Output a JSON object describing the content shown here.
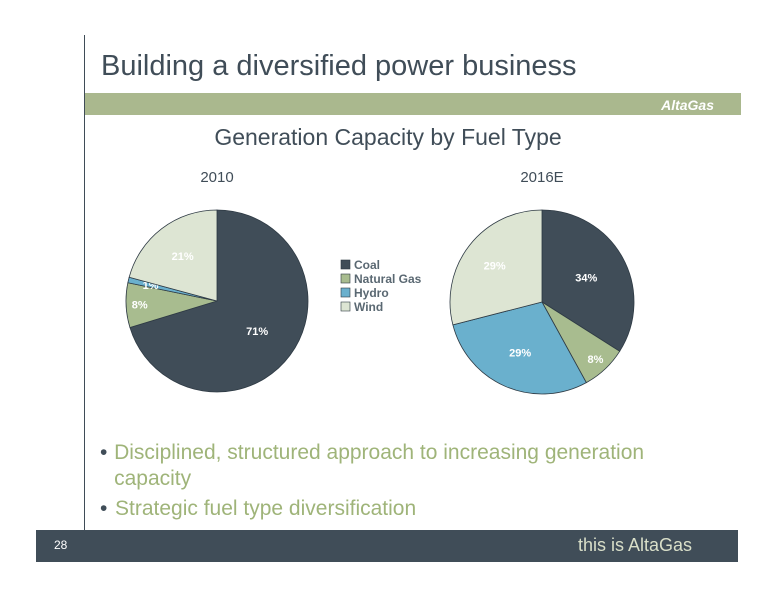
{
  "slide": {
    "title": "Building a diversified power business",
    "brand": "AltaGas",
    "page_number": "28",
    "tagline": "this is AltaGas"
  },
  "bullets": [
    "Disciplined, structured approach to increasing generation capacity",
    "Strategic fuel type diversification"
  ],
  "chart_data": {
    "type": "pie",
    "title": "Generation Capacity by Fuel Type",
    "legend": [
      "Coal",
      "Natural Gas",
      "Hydro",
      "Wind"
    ],
    "legend_placement": "center, between pies",
    "colors": {
      "Coal": "#404d58",
      "Natural Gas": "#a8bc8f",
      "Hydro": "#6ab0cd",
      "Wind": "#dde5d3"
    },
    "pies": [
      {
        "title": "2010",
        "slices": [
          {
            "name": "Coal",
            "value": 71,
            "label": "71%"
          },
          {
            "name": "Natural Gas",
            "value": 8,
            "label": "8%"
          },
          {
            "name": "Hydro",
            "value": 1,
            "label": "1%"
          },
          {
            "name": "Wind",
            "value": 21,
            "label": "21%"
          }
        ]
      },
      {
        "title": "2016E",
        "slices": [
          {
            "name": "Coal",
            "value": 34,
            "label": "34%"
          },
          {
            "name": "Natural Gas",
            "value": 8,
            "label": "8%"
          },
          {
            "name": "Hydro",
            "value": 29,
            "label": "29%"
          },
          {
            "name": "Wind",
            "value": 29,
            "label": "29%"
          }
        ]
      }
    ]
  }
}
